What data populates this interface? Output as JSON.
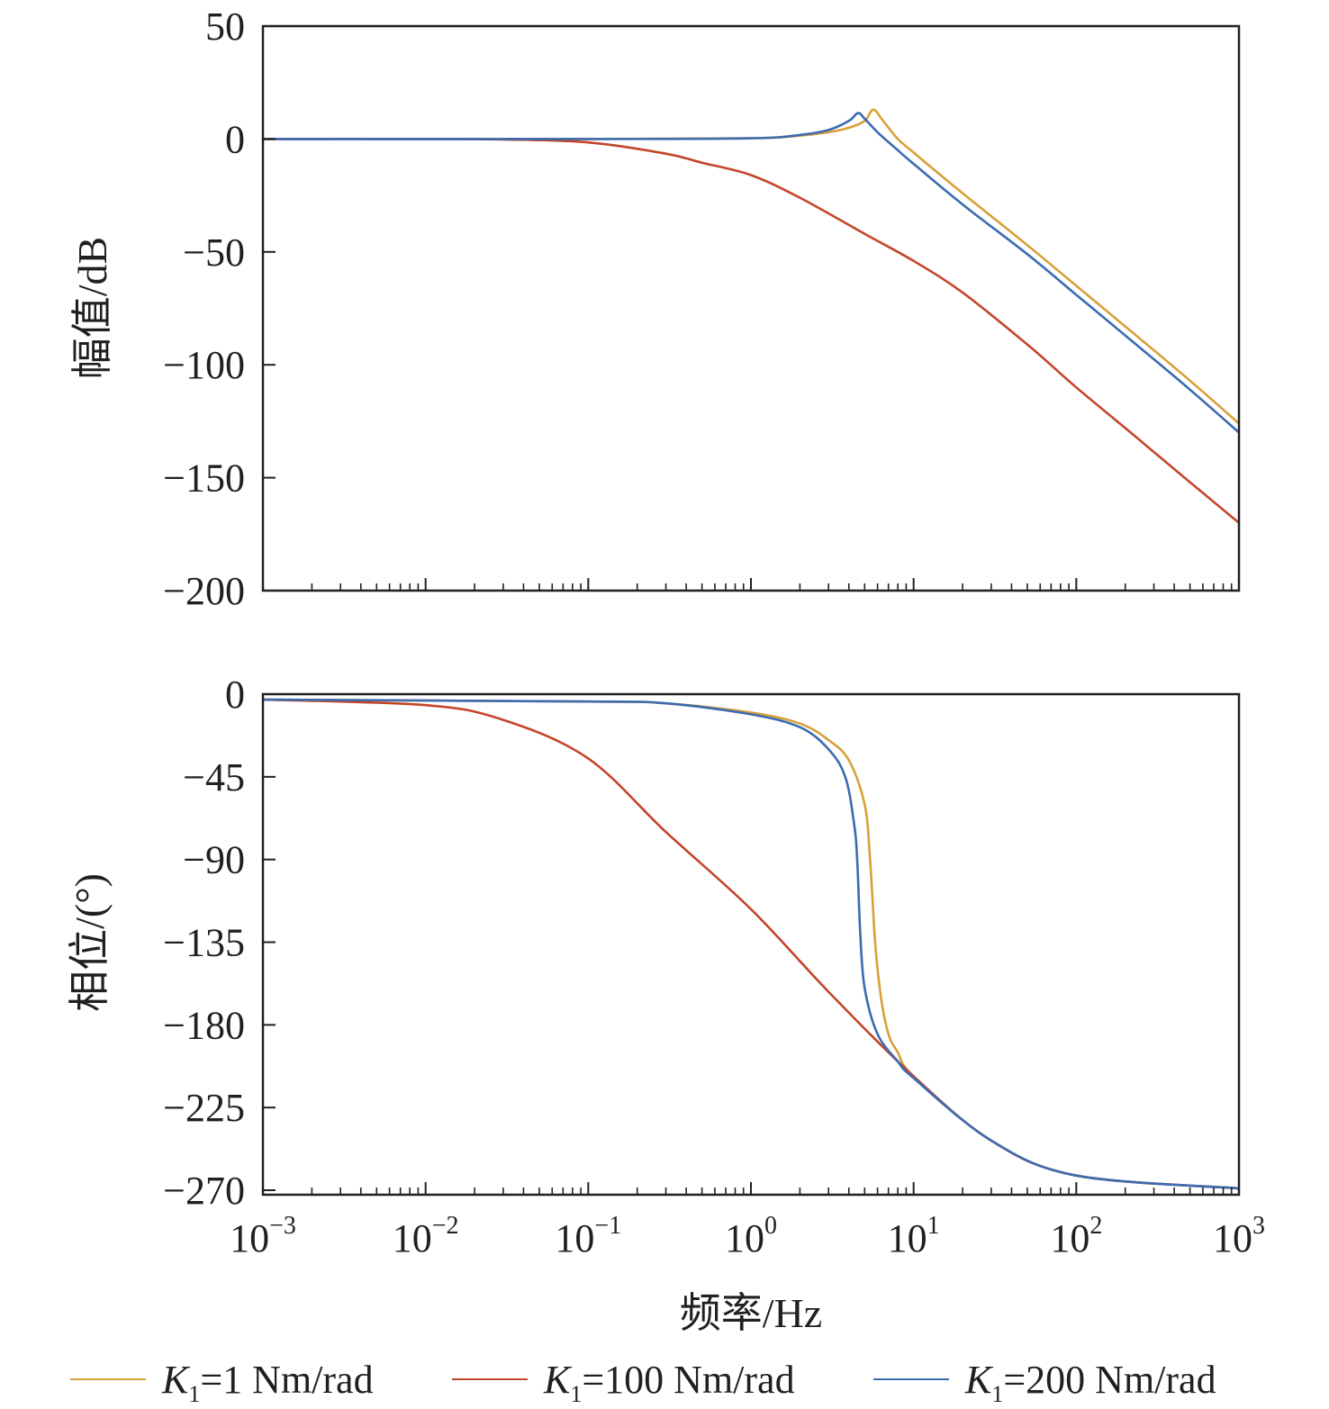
{
  "chart_data": [
    {
      "type": "line",
      "title": "",
      "ylabel": "幅值/dB",
      "xlabel": "",
      "xscale": "log",
      "xlim": [
        0.001,
        1000
      ],
      "ylim": [
        -200,
        50
      ],
      "yticks": [
        50,
        0,
        -50,
        -100,
        -150,
        -200
      ],
      "ytick_labels": [
        "50",
        "0",
        "−50",
        "−100",
        "−150",
        "−200"
      ],
      "series": [
        {
          "name": "K1=1 Nm/rad",
          "color": "#d9a03a",
          "x": [
            0.001,
            0.1,
            1,
            2,
            3,
            4,
            5,
            5.65,
            6.5,
            8,
            10,
            20,
            50,
            100,
            200,
            500,
            1000
          ],
          "y": [
            0,
            0,
            0.3,
            1.5,
            3,
            5,
            8,
            13,
            8,
            0,
            -6,
            -24,
            -47,
            -65,
            -83,
            -107,
            -126
          ]
        },
        {
          "name": "K1=100 Nm/rad",
          "color": "#c4452a",
          "x": [
            0.001,
            0.01,
            0.03,
            0.1,
            0.3,
            0.5,
            1,
            2,
            5,
            10,
            20,
            50,
            100,
            200,
            500,
            1000
          ],
          "y": [
            0,
            0,
            -0.2,
            -1.5,
            -6.5,
            -10.5,
            -16,
            -26,
            -42,
            -54,
            -68,
            -91,
            -110,
            -128,
            -152,
            -170
          ]
        },
        {
          "name": "K1=200 Nm/rad",
          "color": "#3b6bb0",
          "x": [
            0.001,
            0.1,
            1,
            2,
            3,
            4,
            4.55,
            5,
            6,
            8,
            10,
            20,
            50,
            100,
            200,
            500,
            1000
          ],
          "y": [
            0,
            0,
            0.3,
            1.8,
            4,
            8,
            11.5,
            9,
            3,
            -5,
            -11,
            -29,
            -51,
            -69,
            -87,
            -111,
            -130
          ]
        }
      ]
    },
    {
      "type": "line",
      "title": "",
      "ylabel": "相位/(°)",
      "xlabel": "频率/Hz",
      "xscale": "log",
      "xlim": [
        0.001,
        1000
      ],
      "ylim": [
        -270,
        0
      ],
      "yticks": [
        0,
        -45,
        -90,
        -135,
        -180,
        -225,
        -270
      ],
      "ytick_labels": [
        "0",
        "−45",
        "−90",
        "−135",
        "−180",
        "−225",
        "−270"
      ],
      "xticks": [
        0.001,
        0.01,
        0.1,
        1,
        10,
        100,
        1000
      ],
      "xtick_labels": [
        [
          "10",
          "−3"
        ],
        [
          "10",
          "−2"
        ],
        [
          "10",
          "−1"
        ],
        [
          "10",
          "0"
        ],
        [
          "10",
          "1"
        ],
        [
          "10",
          "2"
        ],
        [
          "10",
          "3"
        ]
      ],
      "series": [
        {
          "name": "K1=1 Nm/rad",
          "color": "#d9a03a",
          "x": [
            0.001,
            0.1,
            0.3,
            1,
            2,
            3,
            4,
            5,
            5.4,
            5.8,
            6.3,
            7,
            8,
            10,
            30,
            100,
            1000
          ],
          "y": [
            -3,
            -4,
            -5,
            -10,
            -16,
            -25,
            -36,
            -60,
            -90,
            -135,
            -165,
            -185,
            -195,
            -208,
            -243,
            -262,
            -269
          ]
        },
        {
          "name": "K1=100 Nm/rad",
          "color": "#c4452a",
          "x": [
            0.001,
            0.01,
            0.03,
            0.1,
            0.3,
            1,
            3,
            10,
            30,
            100,
            1000
          ],
          "y": [
            -3,
            -6,
            -14,
            -35,
            -75,
            -117,
            -162,
            -208,
            -243,
            -262,
            -269
          ]
        },
        {
          "name": "K1=200 Nm/rad",
          "color": "#3b6bb0",
          "x": [
            0.001,
            0.1,
            0.3,
            1,
            2,
            3,
            3.8,
            4.3,
            4.5,
            4.7,
            5,
            6,
            8,
            10,
            30,
            100,
            1000
          ],
          "y": [
            -3,
            -4,
            -5,
            -11,
            -18,
            -30,
            -45,
            -70,
            -90,
            -130,
            -160,
            -185,
            -200,
            -209,
            -243,
            -262,
            -269
          ]
        }
      ]
    }
  ],
  "legend": {
    "placement": "bottom",
    "entries": [
      {
        "symbol": "K",
        "sub": "1",
        "rest": "=1 Nm/rad",
        "color": "#d9a03a"
      },
      {
        "symbol": "K",
        "sub": "1",
        "rest": "=100 Nm/rad",
        "color": "#c4452a"
      },
      {
        "symbol": "K",
        "sub": "1",
        "rest": "=200 Nm/rad",
        "color": "#3b6bb0"
      }
    ]
  }
}
